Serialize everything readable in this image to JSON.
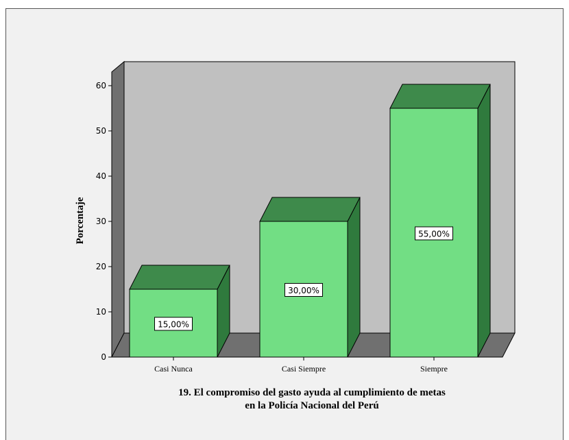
{
  "chart_data": {
    "type": "bar",
    "categories": [
      "Casi Nunca",
      "Casi Siempre",
      "Siempre"
    ],
    "values": [
      15,
      30,
      55
    ],
    "data_labels": [
      "15,00%",
      "30,00%",
      "55,00%"
    ],
    "ylabel": "Porcentaje",
    "xlabel_lines": [
      "19. El compromiso del gasto ayuda al cumplimiento de metas",
      "en la Policía Nacional del Perú"
    ],
    "ylim": [
      0,
      60
    ],
    "yticks": [
      "0",
      "10",
      "20",
      "30",
      "40",
      "50",
      "60"
    ],
    "style": "3d",
    "grid": false,
    "colors": {
      "bar_front": "#72de84",
      "bar_top": "#3e8a4b",
      "bar_side": "#2f7a3d",
      "back_wall": "#c0c0c0",
      "side_wall": "#707070",
      "floor": "#707070",
      "frame_background": "#f1f1f1"
    }
  }
}
